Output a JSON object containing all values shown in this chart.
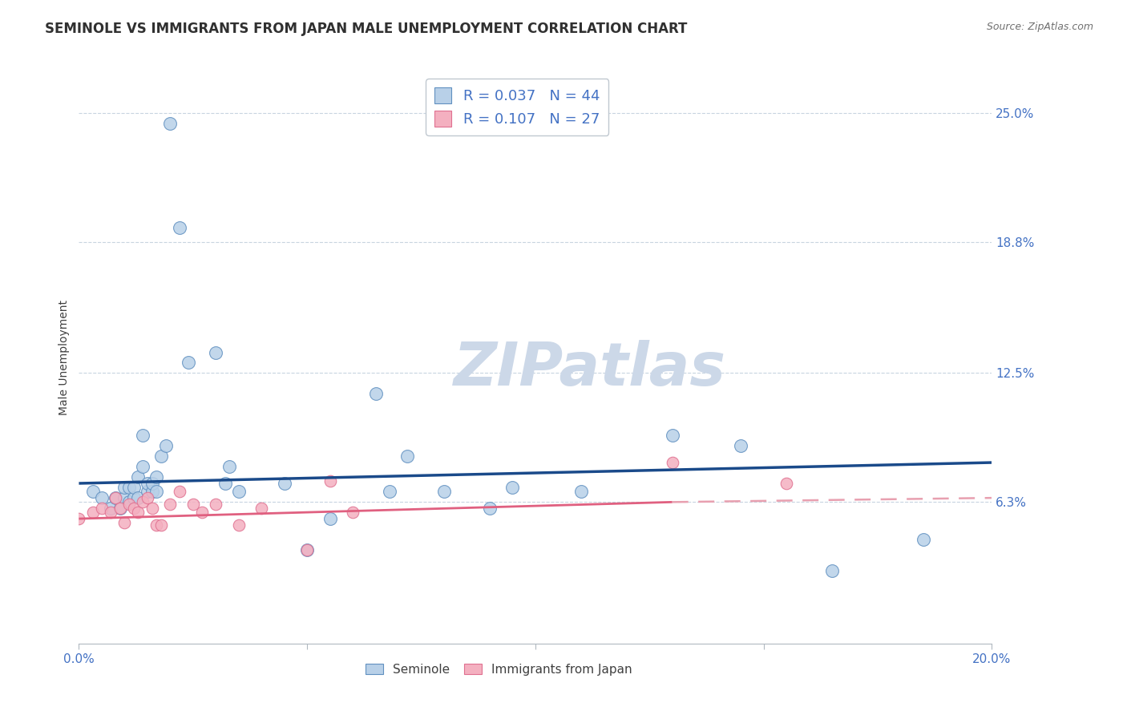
{
  "title": "SEMINOLE VS IMMIGRANTS FROM JAPAN MALE UNEMPLOYMENT CORRELATION CHART",
  "source": "Source: ZipAtlas.com",
  "ylabel": "Male Unemployment",
  "xlim": [
    0.0,
    0.2
  ],
  "ylim": [
    -0.005,
    0.27
  ],
  "yticks": [
    0.063,
    0.125,
    0.188,
    0.25
  ],
  "ytick_labels": [
    "6.3%",
    "12.5%",
    "18.8%",
    "25.0%"
  ],
  "xticks": [
    0.0,
    0.05,
    0.1,
    0.15,
    0.2
  ],
  "legend_entries": [
    {
      "label": "R = 0.037   N = 44",
      "color": "#a8c4e0"
    },
    {
      "label": "R = 0.107   N = 27",
      "color": "#f4a8b8"
    }
  ],
  "seminole_x": [
    0.003,
    0.005,
    0.007,
    0.008,
    0.009,
    0.01,
    0.01,
    0.011,
    0.011,
    0.012,
    0.012,
    0.013,
    0.013,
    0.014,
    0.014,
    0.015,
    0.015,
    0.016,
    0.016,
    0.017,
    0.017,
    0.018,
    0.019,
    0.02,
    0.022,
    0.024,
    0.03,
    0.032,
    0.033,
    0.035,
    0.045,
    0.05,
    0.055,
    0.065,
    0.068,
    0.072,
    0.08,
    0.09,
    0.095,
    0.11,
    0.13,
    0.145,
    0.165,
    0.185
  ],
  "seminole_y": [
    0.068,
    0.065,
    0.06,
    0.065,
    0.06,
    0.065,
    0.07,
    0.063,
    0.07,
    0.065,
    0.07,
    0.065,
    0.075,
    0.08,
    0.095,
    0.068,
    0.072,
    0.068,
    0.072,
    0.068,
    0.075,
    0.085,
    0.09,
    0.245,
    0.195,
    0.13,
    0.135,
    0.072,
    0.08,
    0.068,
    0.072,
    0.04,
    0.055,
    0.115,
    0.068,
    0.085,
    0.068,
    0.06,
    0.07,
    0.068,
    0.095,
    0.09,
    0.03,
    0.045
  ],
  "japan_x": [
    0.0,
    0.003,
    0.005,
    0.007,
    0.008,
    0.009,
    0.01,
    0.011,
    0.012,
    0.013,
    0.014,
    0.015,
    0.016,
    0.017,
    0.018,
    0.02,
    0.022,
    0.025,
    0.027,
    0.03,
    0.035,
    0.04,
    0.05,
    0.055,
    0.06,
    0.13,
    0.155
  ],
  "japan_y": [
    0.055,
    0.058,
    0.06,
    0.058,
    0.065,
    0.06,
    0.053,
    0.062,
    0.06,
    0.058,
    0.063,
    0.065,
    0.06,
    0.052,
    0.052,
    0.062,
    0.068,
    0.062,
    0.058,
    0.062,
    0.052,
    0.06,
    0.04,
    0.073,
    0.058,
    0.082,
    0.072
  ],
  "blue_scatter_face": "#b8d0e8",
  "blue_scatter_edge": "#6090c0",
  "pink_scatter_face": "#f4b0c0",
  "pink_scatter_edge": "#e07090",
  "trend_blue_color": "#1a4a8a",
  "trend_pink_solid_color": "#e06080",
  "trend_pink_dash_color": "#e8a0b0",
  "watermark_color": "#ccd8e8",
  "background_color": "#ffffff",
  "title_color": "#303030",
  "axis_label_color": "#404040",
  "tick_label_color": "#4472c4",
  "grid_color": "#c8d4e0",
  "title_fontsize": 12,
  "axis_label_fontsize": 10
}
